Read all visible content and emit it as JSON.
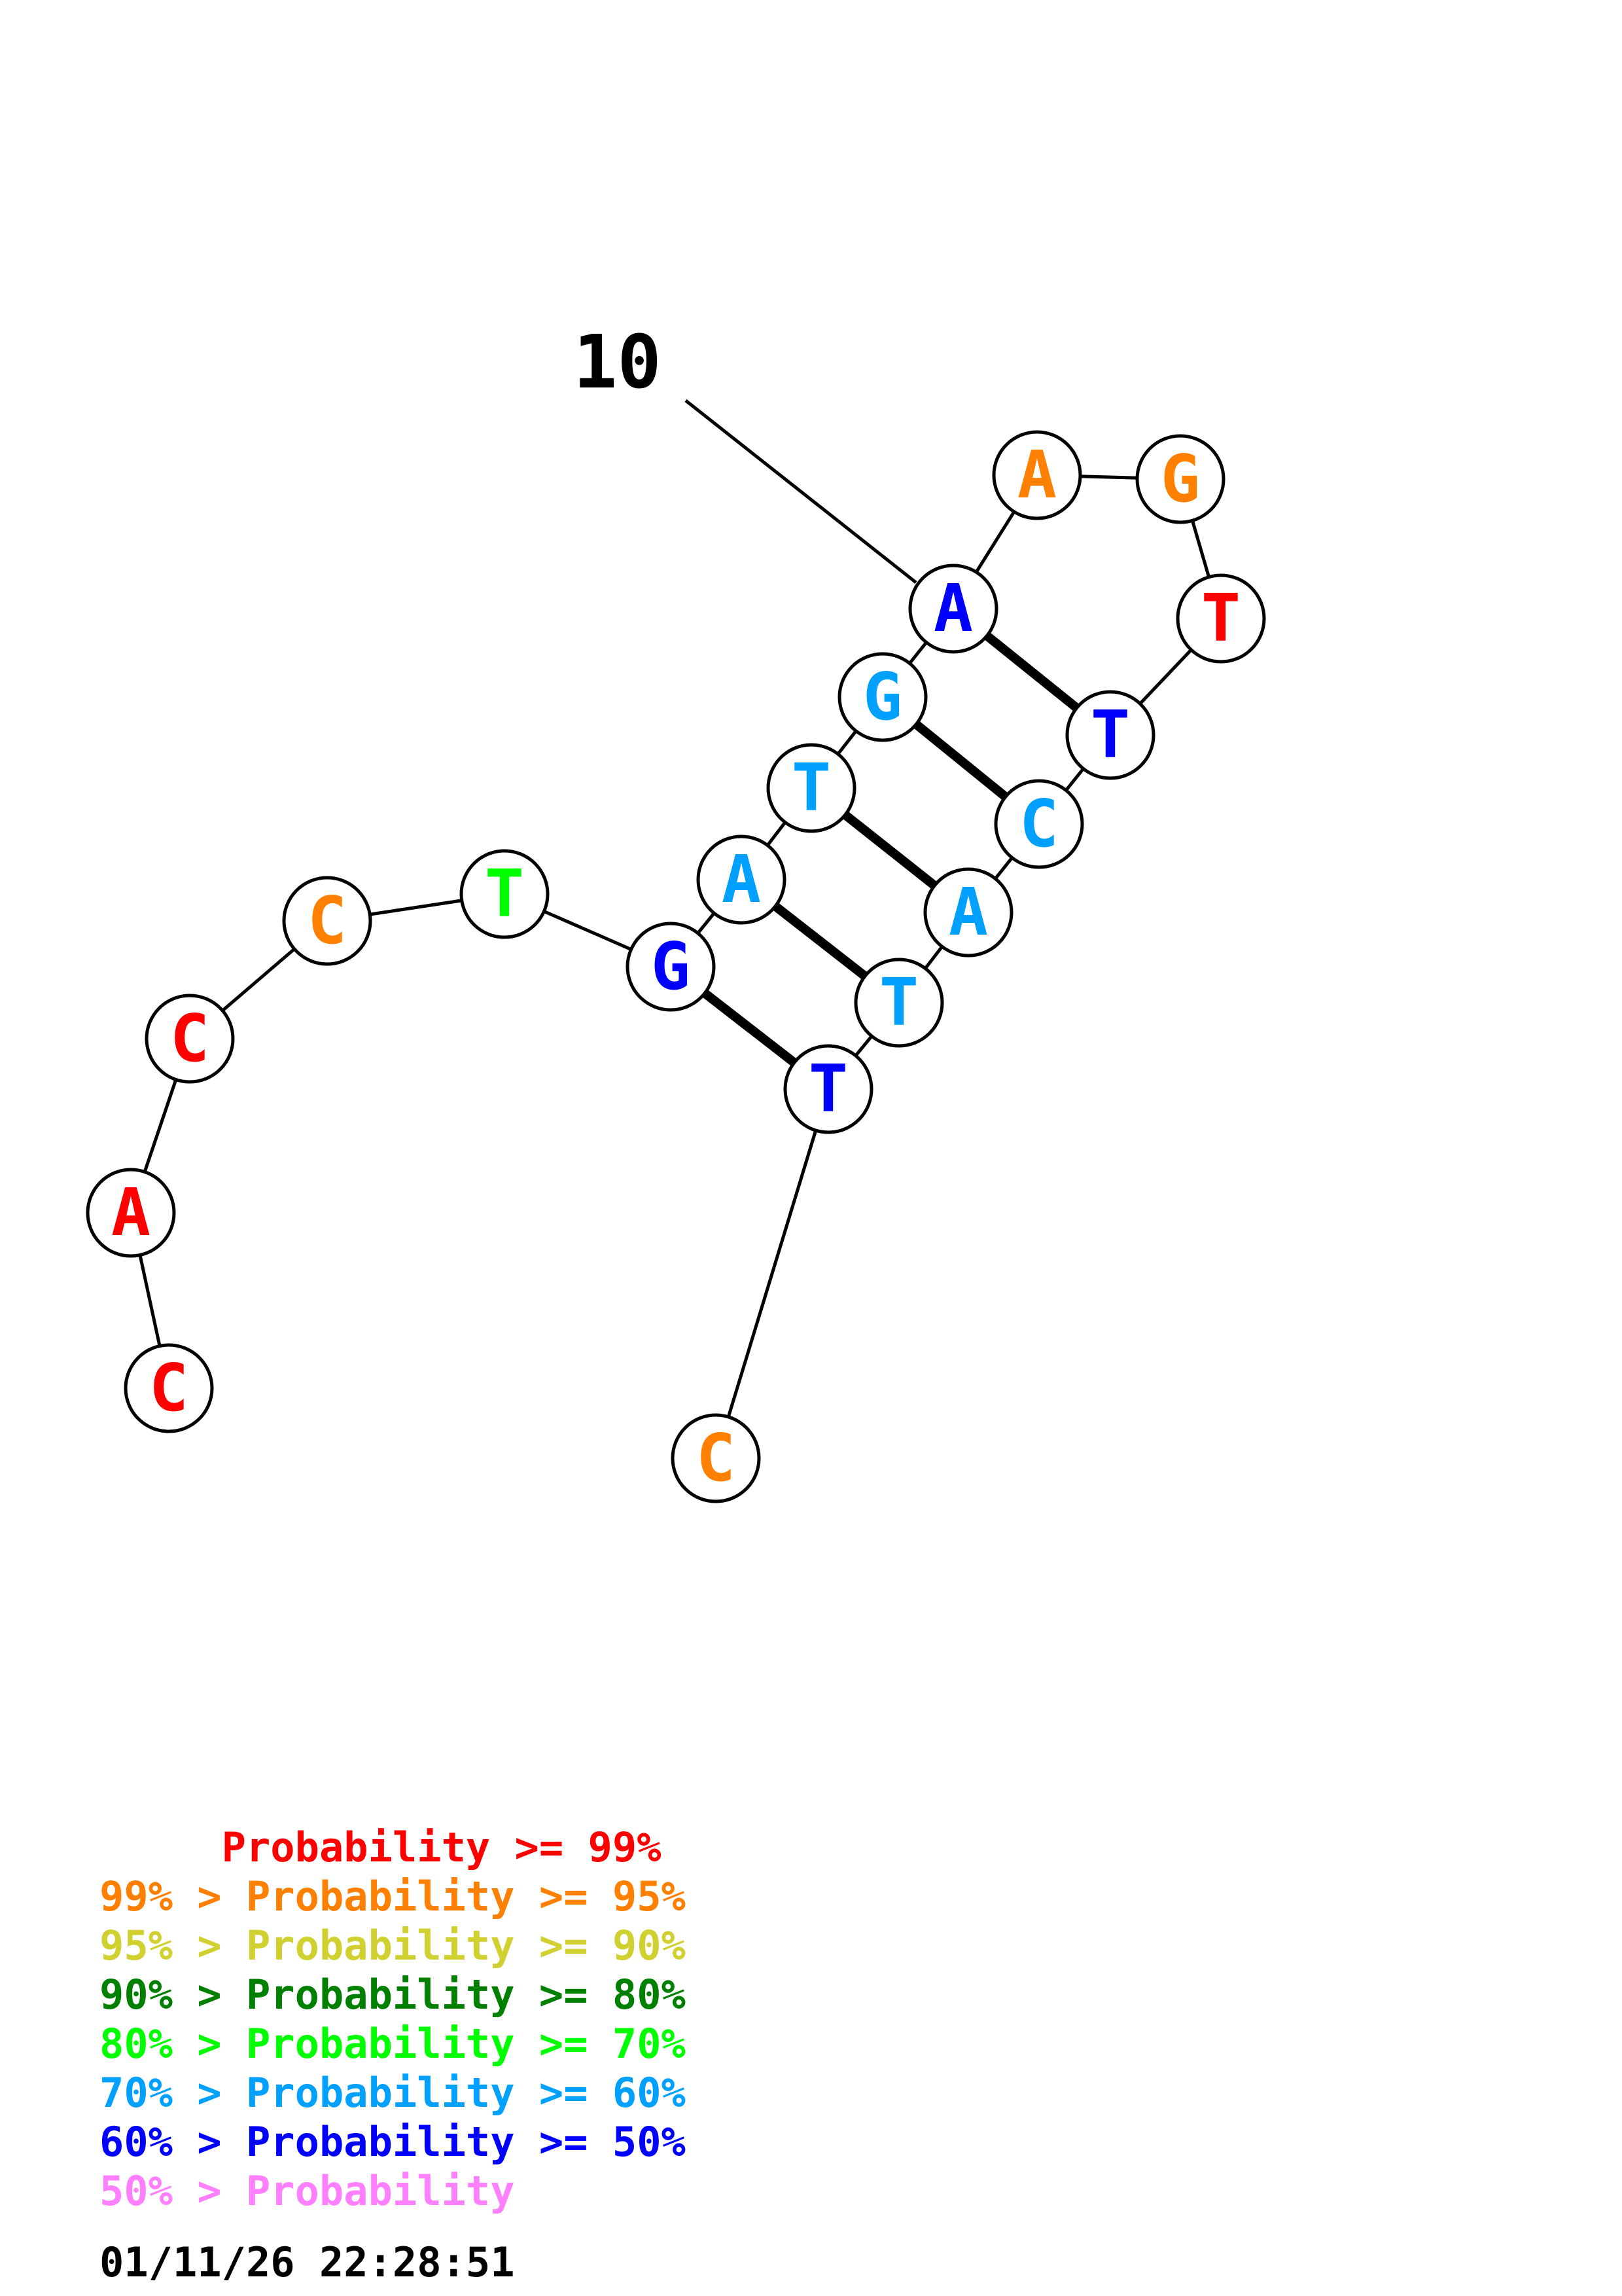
{
  "colors": {
    "p99": "#ff0000",
    "p95": "#ff8000",
    "p90": "#d0d030",
    "p80": "#008000",
    "p70": "#00ff00",
    "p60": "#00a0ff",
    "p50": "#0000ff",
    "plow": "#ff80ff"
  },
  "nucleotides": [
    {
      "base": "C",
      "color_key": "p99"
    },
    {
      "base": "A",
      "color_key": "p99"
    },
    {
      "base": "C",
      "color_key": "p99"
    },
    {
      "base": "C",
      "color_key": "p95"
    },
    {
      "base": "T",
      "color_key": "p70"
    },
    {
      "base": "G",
      "color_key": "p50"
    },
    {
      "base": "A",
      "color_key": "p60"
    },
    {
      "base": "T",
      "color_key": "p60"
    },
    {
      "base": "G",
      "color_key": "p60"
    },
    {
      "base": "A",
      "color_key": "p50"
    },
    {
      "base": "A",
      "color_key": "p95"
    },
    {
      "base": "G",
      "color_key": "p95"
    },
    {
      "base": "T",
      "color_key": "p99"
    },
    {
      "base": "T",
      "color_key": "p50"
    },
    {
      "base": "C",
      "color_key": "p60"
    },
    {
      "base": "A",
      "color_key": "p60"
    },
    {
      "base": "T",
      "color_key": "p60"
    },
    {
      "base": "T",
      "color_key": "p50"
    },
    {
      "base": "C",
      "color_key": "p95"
    }
  ],
  "pairs": [
    [
      6,
      18
    ],
    [
      7,
      17
    ],
    [
      8,
      16
    ],
    [
      9,
      15
    ],
    [
      10,
      14
    ]
  ],
  "tick": {
    "label": "10",
    "position": 10
  },
  "legend": [
    {
      "text": "     Probability >= 99%",
      "color_key": "p99"
    },
    {
      "text": "99% > Probability >= 95%",
      "color_key": "p95"
    },
    {
      "text": "95% > Probability >= 90%",
      "color_key": "p90"
    },
    {
      "text": "90% > Probability >= 80%",
      "color_key": "p80"
    },
    {
      "text": "80% > Probability >= 70%",
      "color_key": "p70"
    },
    {
      "text": "70% > Probability >= 60%",
      "color_key": "p60"
    },
    {
      "text": "60% > Probability >= 50%",
      "color_key": "p50"
    },
    {
      "text": "50% > Probability",
      "color_key": "plow"
    }
  ],
  "timestamp": "01/11/26 22:28:51"
}
